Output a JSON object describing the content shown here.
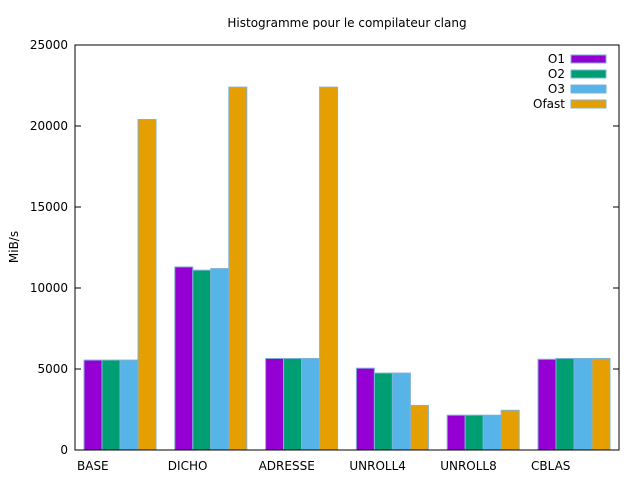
{
  "chart_data": {
    "type": "bar",
    "title": "Histogramme pour le compilateur clang",
    "xlabel": "",
    "ylabel": "MiB/s",
    "ylim": [
      0,
      25000
    ],
    "yticks": [
      "0",
      "5000",
      "10000",
      "15000",
      "20000",
      "25000"
    ],
    "categories": [
      "BASE",
      "DICHO",
      "ADRESSE",
      "UNROLL4",
      "UNROLL8",
      "CBLAS"
    ],
    "series": [
      {
        "name": "O1",
        "color": "#9400d3",
        "values": [
          5550,
          11300,
          5650,
          5050,
          2150,
          5600
        ]
      },
      {
        "name": "O2",
        "color": "#009e73",
        "values": [
          5550,
          11100,
          5650,
          4750,
          2150,
          5650
        ]
      },
      {
        "name": "O3",
        "color": "#56b4e9",
        "values": [
          5550,
          11200,
          5650,
          4750,
          2150,
          5650
        ]
      },
      {
        "name": "Ofast",
        "color": "#e69f00",
        "values": [
          20400,
          22400,
          22400,
          2750,
          2450,
          5650
        ]
      }
    ],
    "legend_position": "top-right",
    "grid": false
  }
}
